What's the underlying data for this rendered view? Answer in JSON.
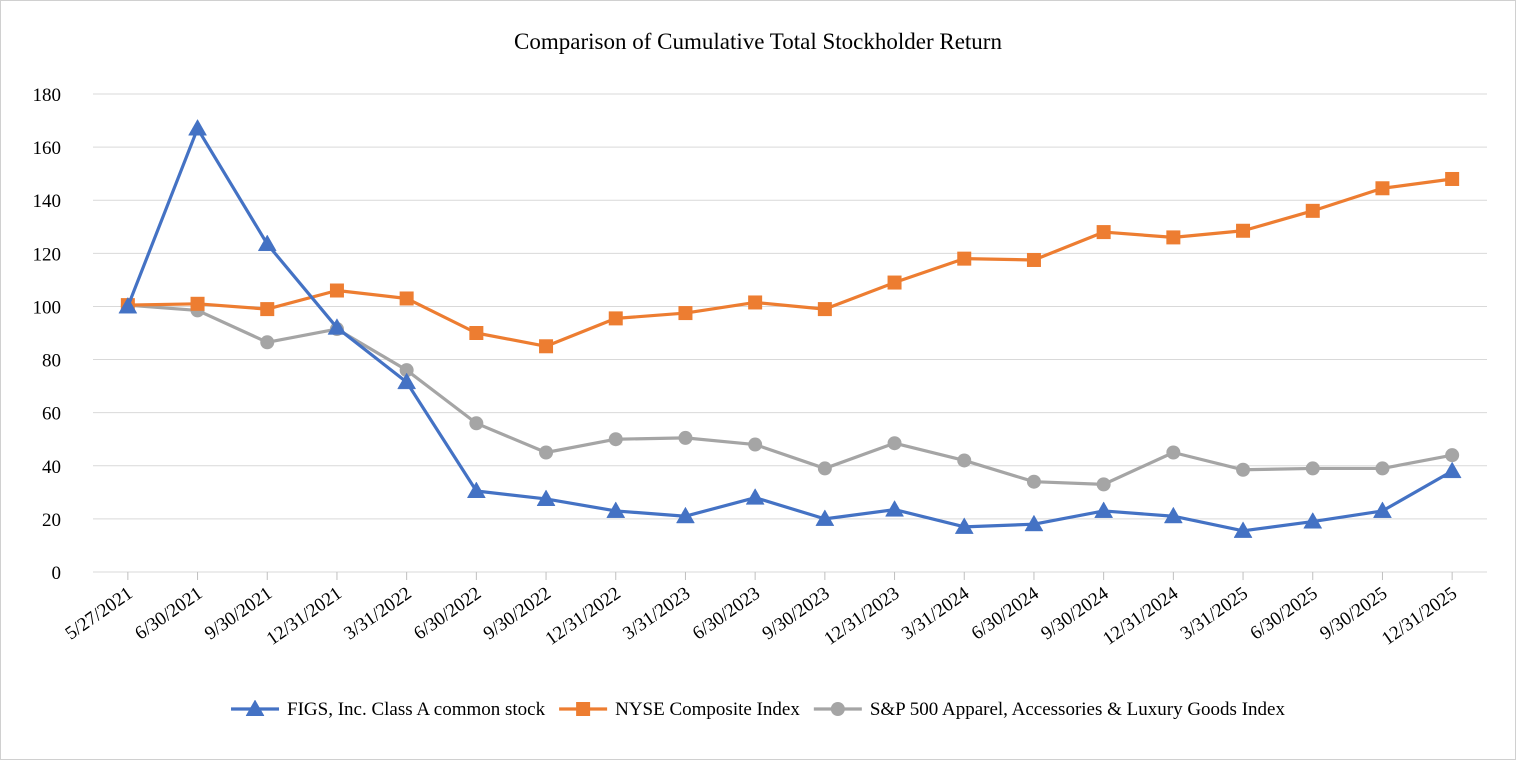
{
  "chart_data": {
    "type": "line",
    "title": "Comparison of Cumulative Total Stockholder Return",
    "xlabel": "",
    "ylabel": "",
    "ylim": [
      0,
      180
    ],
    "yticks": [
      0,
      20,
      40,
      60,
      80,
      100,
      120,
      140,
      160,
      180
    ],
    "grid": true,
    "legend_position": "bottom",
    "categories": [
      "5/27/2021",
      "6/30/2021",
      "9/30/2021",
      "12/31/2021",
      "3/31/2022",
      "6/30/2022",
      "9/30/2022",
      "12/31/2022",
      "3/31/2023",
      "6/30/2023",
      "9/30/2023",
      "12/31/2023",
      "3/31/2024",
      "6/30/2024",
      "9/30/2024",
      "12/31/2024",
      "3/31/2025",
      "6/30/2025",
      "9/30/2025",
      "12/31/2025"
    ],
    "series": [
      {
        "name": "FIGS, Inc. Class A common stock",
        "color": "#4472c4",
        "marker": "triangle",
        "values": [
          100,
          167,
          123.5,
          92,
          71.5,
          30.5,
          27.5,
          23,
          21,
          28,
          20,
          23.5,
          17,
          18,
          23,
          21,
          15.5,
          19,
          23,
          38
        ]
      },
      {
        "name": "NYSE Composite Index",
        "color": "#ed7d31",
        "marker": "square",
        "values": [
          100.5,
          101,
          99,
          106,
          103,
          90,
          85,
          95.5,
          97.5,
          101.5,
          99,
          109,
          118,
          117.5,
          128,
          126,
          128.5,
          136,
          144.5,
          148
        ]
      },
      {
        "name": "S&P 500 Apparel, Accessories & Luxury Goods Index",
        "color": "#a5a5a5",
        "marker": "circle",
        "values": [
          100.5,
          98.5,
          86.5,
          91.5,
          76,
          56,
          45,
          50,
          50.5,
          48,
          39,
          48.5,
          42,
          34,
          33,
          45,
          38.5,
          39,
          39,
          44
        ]
      }
    ]
  }
}
